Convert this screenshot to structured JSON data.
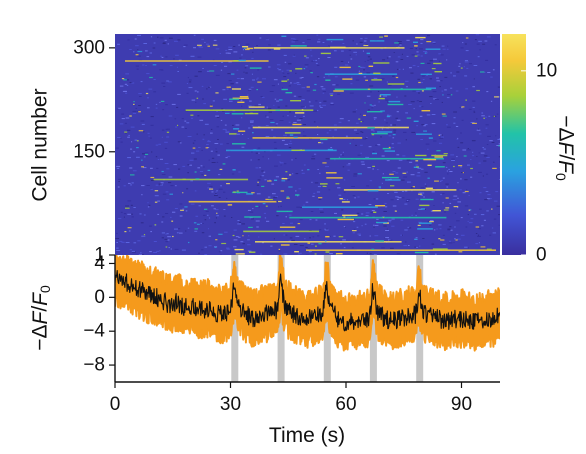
{
  "colors": {
    "heatmap_background": "#3e3cb0",
    "colormap": [
      "#3a2f9e",
      "#4155d6",
      "#2aa2e0",
      "#22c3a8",
      "#a8d13a",
      "#f5c93a",
      "#f7e25c"
    ],
    "trace_band": "#f59a1c",
    "trace_mean": "#111111",
    "stim_bar": "#c8c8c8"
  },
  "chart_data": [
    {
      "type": "heatmap",
      "ylabel": "Cell number",
      "yticks": [
        1,
        150,
        300
      ],
      "yticklabels": [
        "1",
        "150",
        "300"
      ],
      "ylim": [
        1,
        320
      ],
      "xlim": [
        0,
        100
      ],
      "colorbar": {
        "label": "−ΔF/F₀",
        "range": [
          0,
          12
        ],
        "ticks": [
          0,
          10
        ],
        "ticklabels": [
          "0",
          "10"
        ]
      },
      "highlighted_cells": [
        8,
        20,
        35,
        55,
        70,
        78,
        95,
        110,
        140,
        152,
        170,
        185,
        210,
        240,
        262,
        281,
        300
      ]
    },
    {
      "type": "line",
      "xlabel": "Time (s)",
      "ylabel": "−ΔF/F₀",
      "xlim": [
        0,
        100
      ],
      "ylim": [
        -10,
        5
      ],
      "xticks": [
        0,
        30,
        60,
        90
      ],
      "xticklabels": [
        "0",
        "30",
        "60",
        "90"
      ],
      "yticks": [
        4,
        0,
        -4,
        -8
      ],
      "yticklabels": [
        "4",
        "0",
        "−4",
        "−8"
      ],
      "stimulus_times": [
        31,
        43,
        55,
        67,
        79
      ],
      "series": [
        {
          "x": [
            0,
            2,
            4,
            6,
            8,
            10,
            12,
            14,
            16,
            18,
            20,
            22,
            24,
            26,
            28,
            30,
            31,
            32,
            34,
            36,
            38,
            40,
            42,
            43,
            44,
            46,
            48,
            50,
            52,
            54,
            55,
            56,
            58,
            60,
            62,
            64,
            66,
            67,
            68,
            70,
            72,
            74,
            76,
            78,
            79,
            80,
            82,
            84,
            86,
            88,
            90,
            92,
            94,
            96,
            98,
            100
          ],
          "y": [
            2.2,
            2.0,
            1.5,
            1.0,
            0.5,
            0.2,
            -0.3,
            -0.8,
            -0.5,
            -1.2,
            -1.0,
            -1.5,
            -1.3,
            -1.8,
            -2.0,
            -1.5,
            1.5,
            -1.2,
            -2.0,
            -2.5,
            -2.0,
            -1.8,
            -1.5,
            1.8,
            -1.0,
            -1.8,
            -2.2,
            -2.5,
            -2.2,
            -2.0,
            1.5,
            -1.5,
            -2.5,
            -3.0,
            -2.8,
            -2.5,
            -2.5,
            1.2,
            -1.5,
            -2.5,
            -2.8,
            -2.5,
            -2.2,
            -2.0,
            0.5,
            -1.8,
            -2.2,
            -2.5,
            -2.8,
            -2.5,
            -2.5,
            -2.8,
            -3.0,
            -2.5,
            -2.5,
            -2.0
          ],
          "band_halfwidth": [
            2.5,
            2.5,
            2.5,
            2.5,
            2.5,
            2.5,
            2.5,
            2.5,
            2.5,
            2.5,
            2.5,
            2.5,
            2.5,
            2.5,
            2.5,
            2.5,
            3.0,
            2.5,
            2.5,
            2.5,
            2.5,
            2.5,
            2.5,
            3.0,
            2.5,
            2.5,
            2.5,
            2.5,
            2.5,
            2.5,
            3.0,
            2.5,
            2.5,
            2.5,
            2.5,
            2.5,
            2.5,
            3.0,
            2.5,
            2.5,
            2.5,
            2.5,
            2.5,
            2.5,
            3.0,
            2.5,
            2.5,
            2.5,
            2.5,
            2.5,
            2.5,
            2.5,
            2.5,
            2.5,
            2.5,
            2.5
          ]
        }
      ]
    }
  ]
}
